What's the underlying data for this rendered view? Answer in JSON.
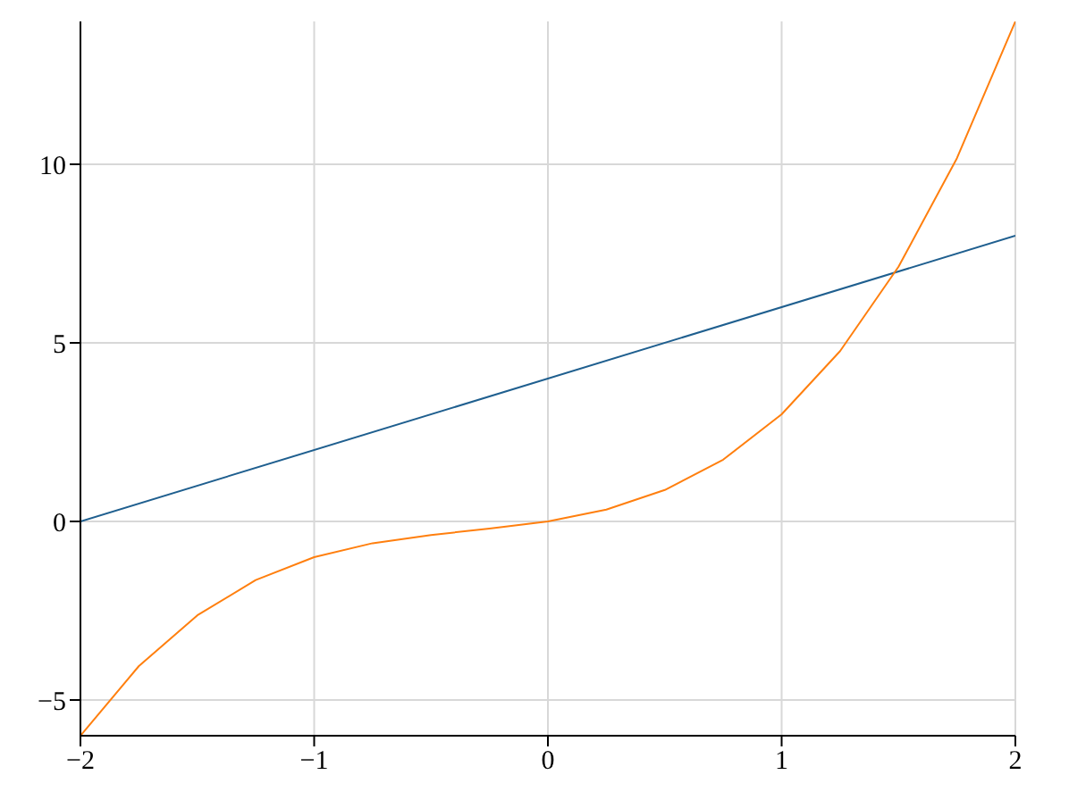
{
  "chart_data": {
    "type": "line",
    "series": [
      {
        "color": "#1f5f8f",
        "x": [
          -2,
          2
        ],
        "values": [
          0,
          8
        ]
      },
      {
        "color": "#ff7f0e",
        "x": [
          -2,
          -1.75,
          -1.5,
          -1.25,
          -1,
          -0.75,
          -0.5,
          -0.25,
          0,
          0.25,
          0.5,
          0.75,
          1,
          1.25,
          1.5,
          1.75,
          2
        ],
        "values": [
          -6,
          -4.05,
          -2.63,
          -1.64,
          -1,
          -0.61,
          -0.38,
          -0.2,
          0,
          0.33,
          0.88,
          1.73,
          3,
          4.77,
          7.13,
          10.17,
          14
        ]
      }
    ],
    "xlim": [
      -2,
      2
    ],
    "ylim": [
      -6,
      14
    ],
    "xticks": [
      {
        "value": -2,
        "label": "−2"
      },
      {
        "value": -1,
        "label": "−1"
      },
      0,
      1,
      2
    ],
    "yticks": [
      {
        "value": -5,
        "label": "−5"
      },
      0,
      5,
      10
    ],
    "grid": true,
    "marker": "none",
    "line_style": "solid"
  }
}
